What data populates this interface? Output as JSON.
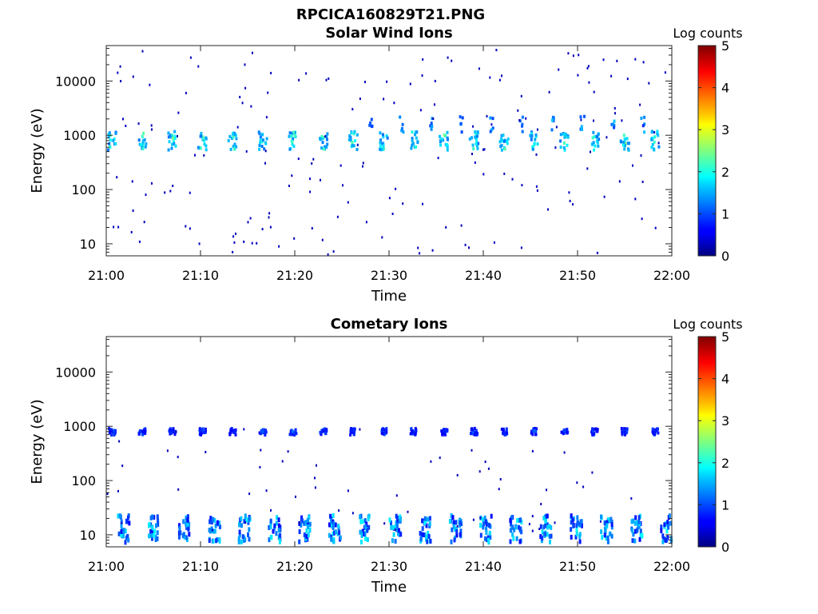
{
  "figure": {
    "title": "RPCICA160829T21.PNG"
  },
  "chart_data": [
    {
      "type": "heatmap",
      "title": "Solar Wind Ions",
      "xlabel": "Time",
      "ylabel": "Energy (eV)",
      "x_ticks": [
        "21:00",
        "21:10",
        "21:20",
        "21:30",
        "21:40",
        "21:50",
        "22:00"
      ],
      "xlim": [
        "21:00",
        "22:00"
      ],
      "y_ticks": [
        "10",
        "100",
        "1000",
        "10000"
      ],
      "yscale": "log",
      "ylim": [
        6,
        45000
      ],
      "colorbar": {
        "label": "Log counts",
        "ticks": [
          "0",
          "1",
          "2",
          "3",
          "4",
          "5"
        ],
        "range": [
          0,
          5
        ],
        "colormap": "jet"
      },
      "patterns": [
        {
          "feature": "periodic solar wind beam",
          "energy_eV": 850,
          "peak_log_counts": 2.6,
          "period_min": 3.2,
          "first_min": 0.5,
          "count": 19
        },
        {
          "feature": "beam upper extension",
          "energy_eV": 1700,
          "peak_log_counts": 1.6,
          "from_min": 28
        },
        {
          "feature": "sparse background",
          "energy_range_eV": [
            6,
            40000
          ],
          "log_counts": 0.3
        }
      ]
    },
    {
      "type": "heatmap",
      "title": "Cometary Ions",
      "xlabel": "Time",
      "ylabel": "Energy (eV)",
      "x_ticks": [
        "21:00",
        "21:10",
        "21:20",
        "21:30",
        "21:40",
        "21:50",
        "22:00"
      ],
      "xlim": [
        "21:00",
        "22:00"
      ],
      "y_ticks": [
        "10",
        "100",
        "1000",
        "10000"
      ],
      "yscale": "log",
      "ylim": [
        6,
        45000
      ],
      "colorbar": {
        "label": "Log counts",
        "ticks": [
          "0",
          "1",
          "2",
          "3",
          "4",
          "5"
        ],
        "range": [
          0,
          5
        ],
        "colormap": "jet"
      },
      "patterns": [
        {
          "feature": "periodic band near 1 keV",
          "energy_eV": 850,
          "peak_log_counts": 1.2,
          "period_min": 3.2,
          "first_min": 0.5,
          "count": 19
        },
        {
          "feature": "periodic low-energy cometary ions",
          "energy_range_eV": [
            8,
            25
          ],
          "peak_log_counts": 1.9,
          "period_min": 3.2,
          "first_min": 1.5,
          "count": 19
        },
        {
          "feature": "sparse background",
          "energy_range_eV": [
            10,
            1000
          ],
          "log_counts": 0.3
        }
      ]
    }
  ]
}
